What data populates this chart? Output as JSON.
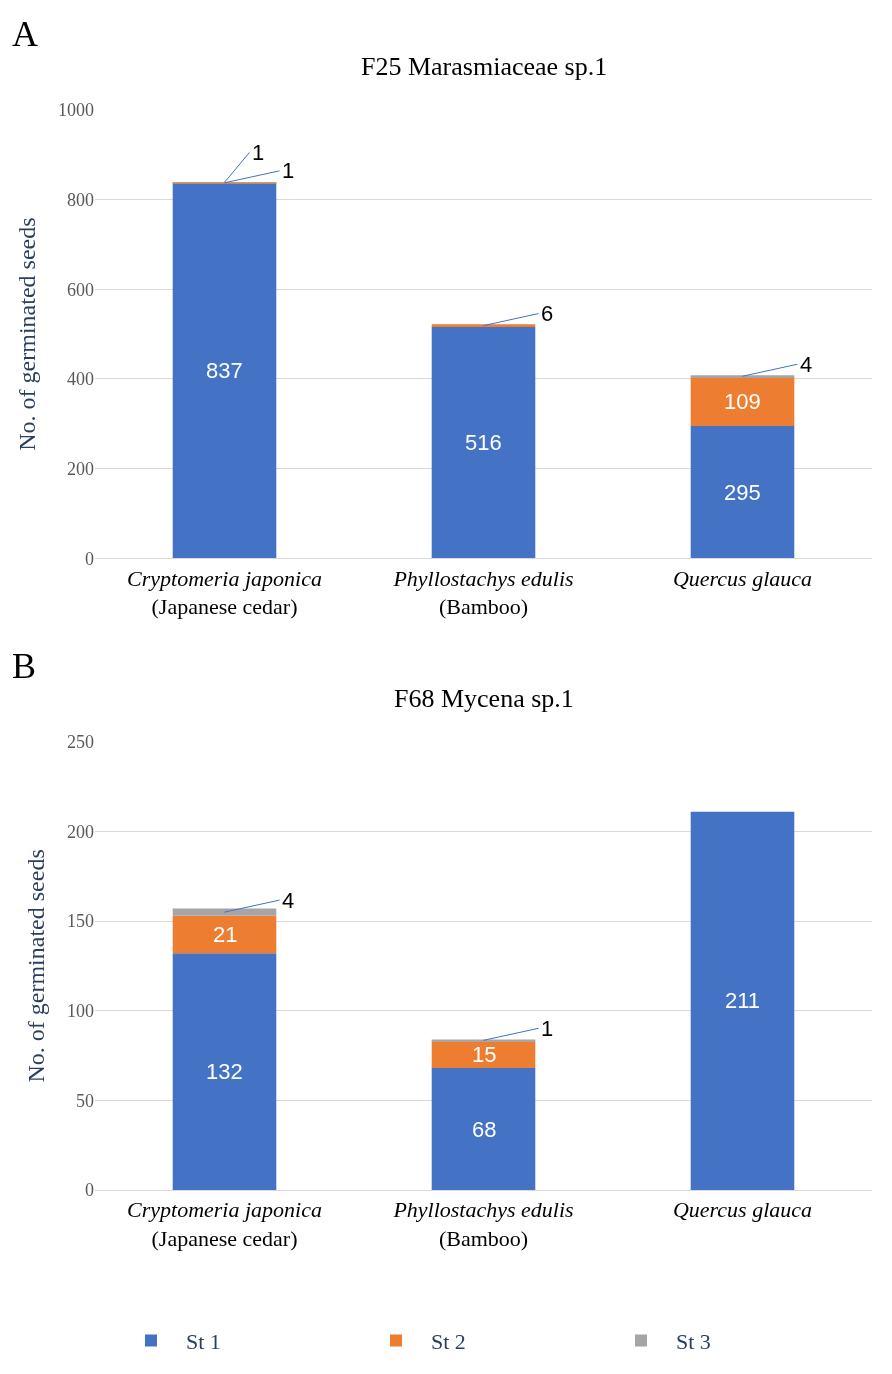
{
  "chart_data": [
    {
      "type": "bar",
      "title": "F25 Marasmiaceae sp.1",
      "ylabel": "No. of germinated seeds",
      "stacked": true,
      "categories": [
        "Cryptomeria japonica\n(Japanese cedar)",
        "Phyllostachys edulis\n(Bamboo)",
        "Quercus glauca"
      ],
      "series": [
        {
          "name": "St 1",
          "color": "#4472c4",
          "values": [
            837,
            516,
            295
          ]
        },
        {
          "name": "St 2",
          "color": "#ed7d31",
          "values": [
            1,
            6,
            109
          ]
        },
        {
          "name": "St 3",
          "color": "#a5a5a5",
          "values": [
            1,
            null,
            4
          ]
        }
      ],
      "ylim": [
        0,
        1000
      ],
      "yticks": [
        0,
        200,
        400,
        600,
        800,
        1000
      ],
      "grid": "y",
      "data_labels": true,
      "legend": "bottom",
      "annotations": [
        "A"
      ]
    },
    {
      "type": "bar",
      "title": "F68 Mycena sp.1",
      "ylabel": "No. of germinated seeds",
      "stacked": true,
      "categories": [
        "Cryptomeria japonica\n(Japanese cedar)",
        "Phyllostachys edulis\n(Bamboo)",
        "Quercus glauca"
      ],
      "series": [
        {
          "color": "#4472c4",
          "values": [
            132,
            68,
            211
          ]
        },
        {
          "color": "#ed7d31",
          "values": [
            21,
            15,
            null
          ]
        },
        {
          "color": "#a5a5a5",
          "values": [
            4,
            1,
            null
          ]
        }
      ],
      "ylim": [
        0,
        250
      ],
      "yticks": [
        0,
        50,
        100,
        150,
        200,
        250
      ],
      "grid": "y",
      "data_labels": true,
      "annotations": [
        "B"
      ]
    }
  ]
}
